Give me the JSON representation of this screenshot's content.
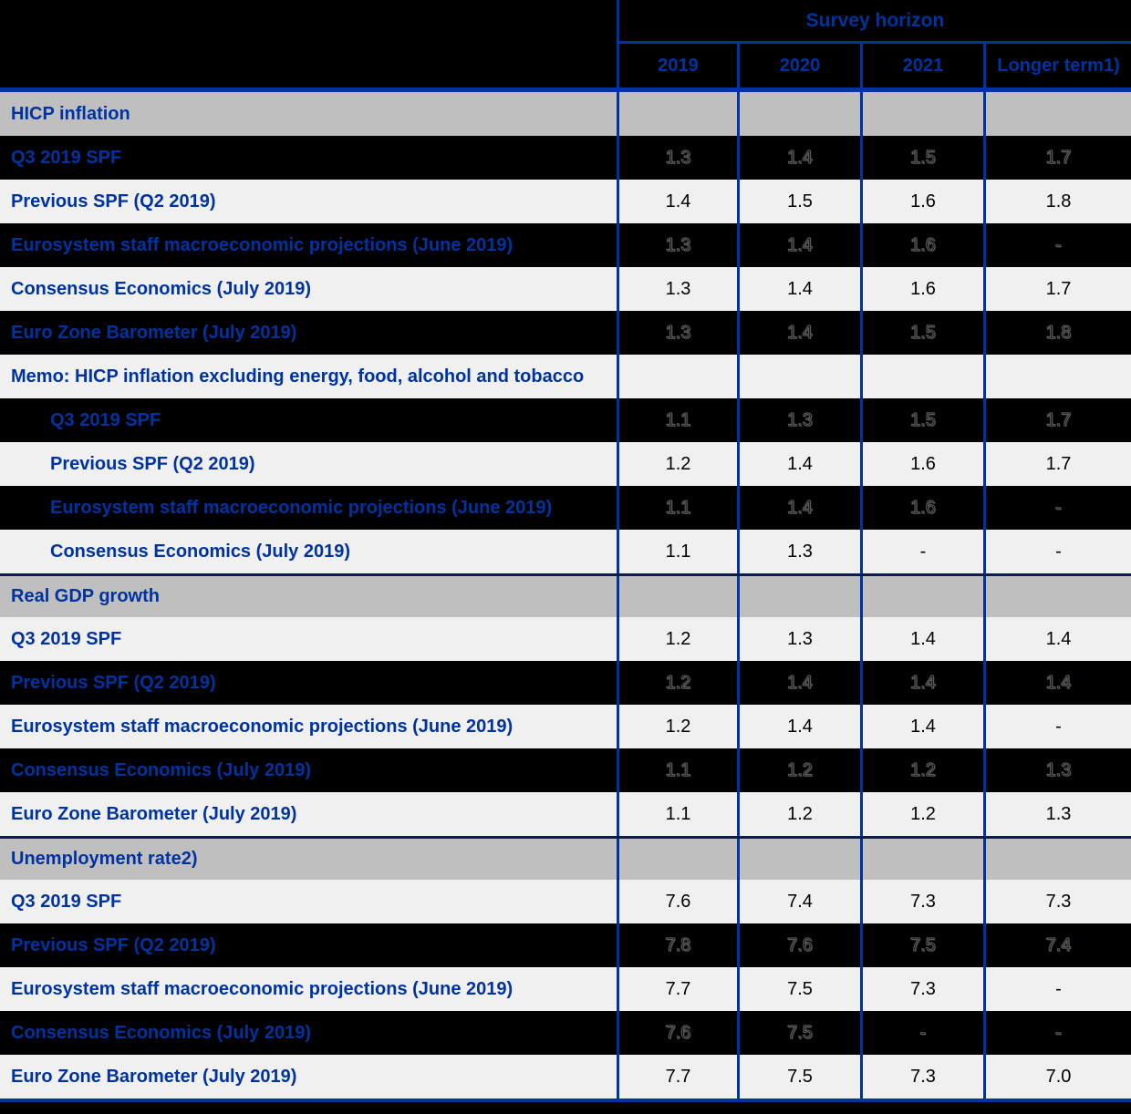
{
  "table": {
    "header": {
      "survey_horizon": "Survey horizon",
      "columns": [
        "2019",
        "2020",
        "2021",
        "Longer term1)"
      ]
    },
    "rows": [
      {
        "label": "HICP inflation",
        "type": "section",
        "values": [
          "",
          "",
          "",
          ""
        ]
      },
      {
        "label": "Q3 2019 SPF",
        "type": "dark",
        "values": [
          "1.3",
          "1.4",
          "1.5",
          "1.7"
        ]
      },
      {
        "label": "Previous SPF (Q2 2019)",
        "type": "light",
        "values": [
          "1.4",
          "1.5",
          "1.6",
          "1.8"
        ]
      },
      {
        "label": "Eurosystem staff macroeconomic projections (June 2019)",
        "type": "dark",
        "values": [
          "1.3",
          "1.4",
          "1.6",
          "-"
        ]
      },
      {
        "label": "Consensus Economics (July 2019)",
        "type": "light",
        "values": [
          "1.3",
          "1.4",
          "1.6",
          "1.7"
        ]
      },
      {
        "label": "Euro Zone Barometer (July 2019)",
        "type": "dark",
        "values": [
          "1.3",
          "1.4",
          "1.5",
          "1.8"
        ]
      },
      {
        "label": "Memo: HICP inflation excluding energy, food, alcohol and tobacco",
        "type": "light",
        "values": [
          "",
          "",
          "",
          ""
        ]
      },
      {
        "label": "Q3 2019 SPF",
        "type": "dark",
        "indent": true,
        "values": [
          "1.1",
          "1.3",
          "1.5",
          "1.7"
        ]
      },
      {
        "label": "Previous SPF (Q2 2019)",
        "type": "light",
        "indent": true,
        "values": [
          "1.2",
          "1.4",
          "1.6",
          "1.7"
        ]
      },
      {
        "label": "Eurosystem staff macroeconomic projections (June 2019)",
        "type": "dark",
        "indent": true,
        "values": [
          "1.1",
          "1.4",
          "1.6",
          "-"
        ]
      },
      {
        "label": "Consensus Economics (July 2019)",
        "type": "light",
        "indent": true,
        "values": [
          "1.1",
          "1.3",
          "-",
          "-"
        ]
      },
      {
        "label": "Real GDP growth",
        "type": "section",
        "divider": true,
        "values": [
          "",
          "",
          "",
          ""
        ]
      },
      {
        "label": "Q3 2019 SPF",
        "type": "light",
        "values": [
          "1.2",
          "1.3",
          "1.4",
          "1.4"
        ]
      },
      {
        "label": "Previous SPF (Q2 2019)",
        "type": "dark",
        "values": [
          "1.2",
          "1.4",
          "1.4",
          "1.4"
        ]
      },
      {
        "label": "Eurosystem staff macroeconomic projections (June 2019)",
        "type": "light",
        "values": [
          "1.2",
          "1.4",
          "1.4",
          "-"
        ]
      },
      {
        "label": "Consensus Economics (July 2019)",
        "type": "dark",
        "values": [
          "1.1",
          "1.2",
          "1.2",
          "1.3"
        ]
      },
      {
        "label": "Euro Zone Barometer (July 2019)",
        "type": "light",
        "values": [
          "1.1",
          "1.2",
          "1.2",
          "1.3"
        ]
      },
      {
        "label": "Unemployment rate2)",
        "type": "section",
        "divider": true,
        "values": [
          "",
          "",
          "",
          ""
        ]
      },
      {
        "label": "Q3 2019 SPF",
        "type": "light",
        "values": [
          "7.6",
          "7.4",
          "7.3",
          "7.3"
        ]
      },
      {
        "label": "Previous SPF (Q2 2019)",
        "type": "dark",
        "values": [
          "7.8",
          "7.6",
          "7.5",
          "7.4"
        ]
      },
      {
        "label": "Eurosystem staff macroeconomic projections (June 2019)",
        "type": "light",
        "values": [
          "7.7",
          "7.5",
          "7.3",
          "-"
        ]
      },
      {
        "label": "Consensus Economics (July 2019)",
        "type": "dark",
        "values": [
          "7.6",
          "7.5",
          "-",
          "-"
        ]
      },
      {
        "label": "Euro Zone Barometer (July 2019)",
        "type": "light",
        "values": [
          "7.7",
          "7.5",
          "7.3",
          "7.0"
        ]
      }
    ]
  },
  "colors": {
    "blue": "#0033A0",
    "navy": "#0a1d52",
    "gray": "#BFBFBF",
    "light": "#F0F0F0",
    "page-bg": "#000000",
    "value-ink": "#000000"
  }
}
